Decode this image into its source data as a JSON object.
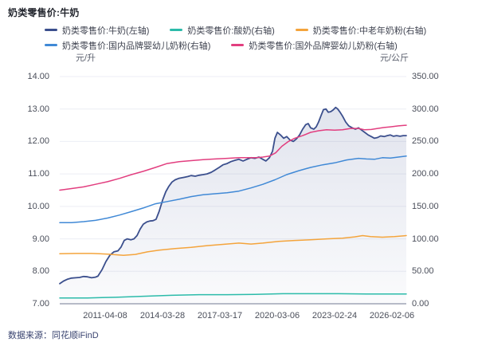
{
  "footer": {
    "text": "数据来源：同花顺iFinD"
  },
  "legend": {
    "rows": [
      [
        0,
        1,
        2
      ],
      [
        3,
        4
      ]
    ]
  },
  "style": {
    "grid_color": "#eceef4",
    "axis_line_color": "#b8bcc8",
    "tick_text_color": "#4a4e5a",
    "area_top": "rgba(104,119,168,0.20)",
    "area_bottom": "rgba(104,119,168,0.03)"
  },
  "chart_data": {
    "type": "line",
    "title": "奶类零售价:牛奶",
    "legend_position": "top",
    "grid": true,
    "left_axis": {
      "unit": "元/升",
      "min": 7,
      "max": 14,
      "ticks": [
        "14.00",
        "13.00",
        "12.00",
        "11.00",
        "10.00",
        "9.00",
        "8.00",
        "7.00"
      ]
    },
    "right_axis": {
      "unit": "元/公斤",
      "min": 0,
      "max": 350,
      "ticks": [
        "350.00",
        "300.00",
        "250.00",
        "200.00",
        "150.00",
        "100.00",
        "50.00",
        "0.00"
      ]
    },
    "x_ticks": [
      "2011-04-08",
      "2014-03-28",
      "2017-03-17",
      "2020-03-06",
      "2023-02-24",
      "2026-02-06"
    ],
    "series": [
      {
        "name": "奶类零售价:牛奶(左轴)",
        "axis": "left",
        "color": "#3b4f8d",
        "width": 1.8,
        "area": true,
        "points": [
          [
            0,
            7.62
          ],
          [
            0.011,
            7.7
          ],
          [
            0.023,
            7.76
          ],
          [
            0.034,
            7.79
          ],
          [
            0.046,
            7.8
          ],
          [
            0.057,
            7.81
          ],
          [
            0.069,
            7.84
          ],
          [
            0.08,
            7.83
          ],
          [
            0.092,
            7.8
          ],
          [
            0.103,
            7.82
          ],
          [
            0.11,
            7.85
          ],
          [
            0.122,
            8.05
          ],
          [
            0.133,
            8.3
          ],
          [
            0.145,
            8.5
          ],
          [
            0.156,
            8.6
          ],
          [
            0.168,
            8.63
          ],
          [
            0.177,
            8.75
          ],
          [
            0.186,
            8.95
          ],
          [
            0.195,
            9.0
          ],
          [
            0.205,
            8.97
          ],
          [
            0.214,
            9.0
          ],
          [
            0.223,
            9.1
          ],
          [
            0.232,
            9.3
          ],
          [
            0.241,
            9.45
          ],
          [
            0.251,
            9.52
          ],
          [
            0.26,
            9.55
          ],
          [
            0.269,
            9.56
          ],
          [
            0.278,
            9.6
          ],
          [
            0.287,
            9.85
          ],
          [
            0.297,
            10.2
          ],
          [
            0.306,
            10.45
          ],
          [
            0.315,
            10.62
          ],
          [
            0.324,
            10.75
          ],
          [
            0.333,
            10.82
          ],
          [
            0.343,
            10.86
          ],
          [
            0.352,
            10.88
          ],
          [
            0.361,
            10.9
          ],
          [
            0.37,
            10.92
          ],
          [
            0.379,
            10.95
          ],
          [
            0.391,
            10.93
          ],
          [
            0.402,
            10.96
          ],
          [
            0.414,
            10.98
          ],
          [
            0.425,
            11.0
          ],
          [
            0.437,
            11.05
          ],
          [
            0.448,
            11.12
          ],
          [
            0.46,
            11.2
          ],
          [
            0.471,
            11.28
          ],
          [
            0.483,
            11.32
          ],
          [
            0.494,
            11.38
          ],
          [
            0.506,
            11.42
          ],
          [
            0.517,
            11.45
          ],
          [
            0.529,
            11.4
          ],
          [
            0.54,
            11.45
          ],
          [
            0.552,
            11.5
          ],
          [
            0.563,
            11.48
          ],
          [
            0.575,
            11.52
          ],
          [
            0.586,
            11.45
          ],
          [
            0.595,
            11.4
          ],
          [
            0.605,
            11.5
          ],
          [
            0.614,
            11.7
          ],
          [
            0.621,
            12.1
          ],
          [
            0.628,
            12.28
          ],
          [
            0.637,
            12.2
          ],
          [
            0.646,
            12.1
          ],
          [
            0.655,
            12.15
          ],
          [
            0.664,
            12.05
          ],
          [
            0.674,
            12.0
          ],
          [
            0.683,
            12.08
          ],
          [
            0.692,
            12.2
          ],
          [
            0.701,
            12.38
          ],
          [
            0.71,
            12.52
          ],
          [
            0.717,
            12.55
          ],
          [
            0.724,
            12.42
          ],
          [
            0.733,
            12.38
          ],
          [
            0.74,
            12.45
          ],
          [
            0.747,
            12.6
          ],
          [
            0.754,
            12.8
          ],
          [
            0.761,
            12.98
          ],
          [
            0.768,
            13.0
          ],
          [
            0.775,
            12.9
          ],
          [
            0.782,
            12.92
          ],
          [
            0.789,
            12.97
          ],
          [
            0.796,
            13.05
          ],
          [
            0.802,
            13.0
          ],
          [
            0.809,
            12.9
          ],
          [
            0.816,
            12.78
          ],
          [
            0.825,
            12.6
          ],
          [
            0.834,
            12.48
          ],
          [
            0.844,
            12.42
          ],
          [
            0.853,
            12.38
          ],
          [
            0.862,
            12.42
          ],
          [
            0.871,
            12.35
          ],
          [
            0.88,
            12.28
          ],
          [
            0.89,
            12.2
          ],
          [
            0.899,
            12.15
          ],
          [
            0.908,
            12.1
          ],
          [
            0.917,
            12.12
          ],
          [
            0.926,
            12.17
          ],
          [
            0.936,
            12.15
          ],
          [
            0.945,
            12.18
          ],
          [
            0.954,
            12.2
          ],
          [
            0.963,
            12.16
          ],
          [
            0.972,
            12.18
          ],
          [
            0.982,
            12.16
          ],
          [
            0.991,
            12.18
          ],
          [
            1,
            12.18
          ]
        ]
      },
      {
        "name": "奶类零售价:酸奶(右轴)",
        "axis": "right",
        "color": "#2cbbaa",
        "width": 1.5,
        "area": false,
        "points": [
          [
            0,
            9
          ],
          [
            0.08,
            9
          ],
          [
            0.161,
            10
          ],
          [
            0.241,
            11.5
          ],
          [
            0.322,
            13
          ],
          [
            0.402,
            14
          ],
          [
            0.483,
            14
          ],
          [
            0.563,
            14.5
          ],
          [
            0.644,
            15.5
          ],
          [
            0.724,
            15.5
          ],
          [
            0.805,
            15.5
          ],
          [
            0.885,
            15
          ],
          [
            0.943,
            15
          ],
          [
            1,
            15
          ]
        ]
      },
      {
        "name": "奶类零售价:中老年奶粉(右轴)",
        "axis": "right",
        "color": "#f4a43c",
        "width": 1.5,
        "area": false,
        "points": [
          [
            0,
            77
          ],
          [
            0.046,
            77.5
          ],
          [
            0.092,
            77.5
          ],
          [
            0.138,
            76.5
          ],
          [
            0.184,
            74.5
          ],
          [
            0.218,
            76
          ],
          [
            0.253,
            80
          ],
          [
            0.287,
            82.5
          ],
          [
            0.333,
            85
          ],
          [
            0.379,
            87
          ],
          [
            0.425,
            89.5
          ],
          [
            0.471,
            91.5
          ],
          [
            0.517,
            93.5
          ],
          [
            0.552,
            92
          ],
          [
            0.586,
            93.5
          ],
          [
            0.632,
            96
          ],
          [
            0.678,
            97.5
          ],
          [
            0.724,
            98.5
          ],
          [
            0.77,
            100
          ],
          [
            0.816,
            101
          ],
          [
            0.851,
            103
          ],
          [
            0.874,
            105
          ],
          [
            0.897,
            103.5
          ],
          [
            0.931,
            102.5
          ],
          [
            0.966,
            103.5
          ],
          [
            1,
            105
          ]
        ]
      },
      {
        "name": "奶类零售价:国内品牌婴幼儿奶粉(右轴)",
        "axis": "right",
        "color": "#4089d6",
        "width": 1.5,
        "area": false,
        "points": [
          [
            0,
            125
          ],
          [
            0.034,
            125
          ],
          [
            0.069,
            126.5
          ],
          [
            0.103,
            128.5
          ],
          [
            0.138,
            132
          ],
          [
            0.172,
            136.5
          ],
          [
            0.207,
            142
          ],
          [
            0.241,
            147.5
          ],
          [
            0.276,
            154
          ],
          [
            0.31,
            157.5
          ],
          [
            0.345,
            161
          ],
          [
            0.379,
            165
          ],
          [
            0.414,
            168
          ],
          [
            0.448,
            169.5
          ],
          [
            0.483,
            171
          ],
          [
            0.517,
            173.5
          ],
          [
            0.552,
            178.5
          ],
          [
            0.586,
            184
          ],
          [
            0.621,
            191
          ],
          [
            0.655,
            199
          ],
          [
            0.69,
            205
          ],
          [
            0.724,
            210
          ],
          [
            0.759,
            214
          ],
          [
            0.793,
            217
          ],
          [
            0.828,
            221.5
          ],
          [
            0.862,
            224
          ],
          [
            0.885,
            223
          ],
          [
            0.908,
            222.5
          ],
          [
            0.931,
            225
          ],
          [
            0.954,
            224.5
          ],
          [
            0.977,
            226
          ],
          [
            1,
            227.5
          ]
        ]
      },
      {
        "name": "奶类零售价:国外品牌婴幼儿奶粉(右轴)",
        "axis": "right",
        "color": "#e23e7f",
        "width": 1.5,
        "area": false,
        "points": [
          [
            0,
            175
          ],
          [
            0.034,
            177.5
          ],
          [
            0.069,
            180
          ],
          [
            0.103,
            184
          ],
          [
            0.138,
            188
          ],
          [
            0.172,
            193
          ],
          [
            0.207,
            199
          ],
          [
            0.241,
            204
          ],
          [
            0.276,
            210
          ],
          [
            0.31,
            216
          ],
          [
            0.345,
            219
          ],
          [
            0.379,
            220.5
          ],
          [
            0.414,
            222
          ],
          [
            0.448,
            223
          ],
          [
            0.483,
            224
          ],
          [
            0.517,
            225
          ],
          [
            0.552,
            225
          ],
          [
            0.568,
            225
          ],
          [
            0.586,
            226
          ],
          [
            0.605,
            227.5
          ],
          [
            0.623,
            232.5
          ],
          [
            0.641,
            242.5
          ],
          [
            0.66,
            250
          ],
          [
            0.678,
            255
          ],
          [
            0.701,
            259
          ],
          [
            0.724,
            264
          ],
          [
            0.747,
            266.5
          ],
          [
            0.77,
            268
          ],
          [
            0.793,
            267.5
          ],
          [
            0.816,
            268
          ],
          [
            0.839,
            270
          ],
          [
            0.862,
            270
          ],
          [
            0.88,
            268
          ],
          [
            0.899,
            268.5
          ],
          [
            0.917,
            270
          ],
          [
            0.936,
            271.5
          ],
          [
            0.954,
            272.5
          ],
          [
            0.977,
            274
          ],
          [
            1,
            275
          ]
        ]
      }
    ]
  }
}
